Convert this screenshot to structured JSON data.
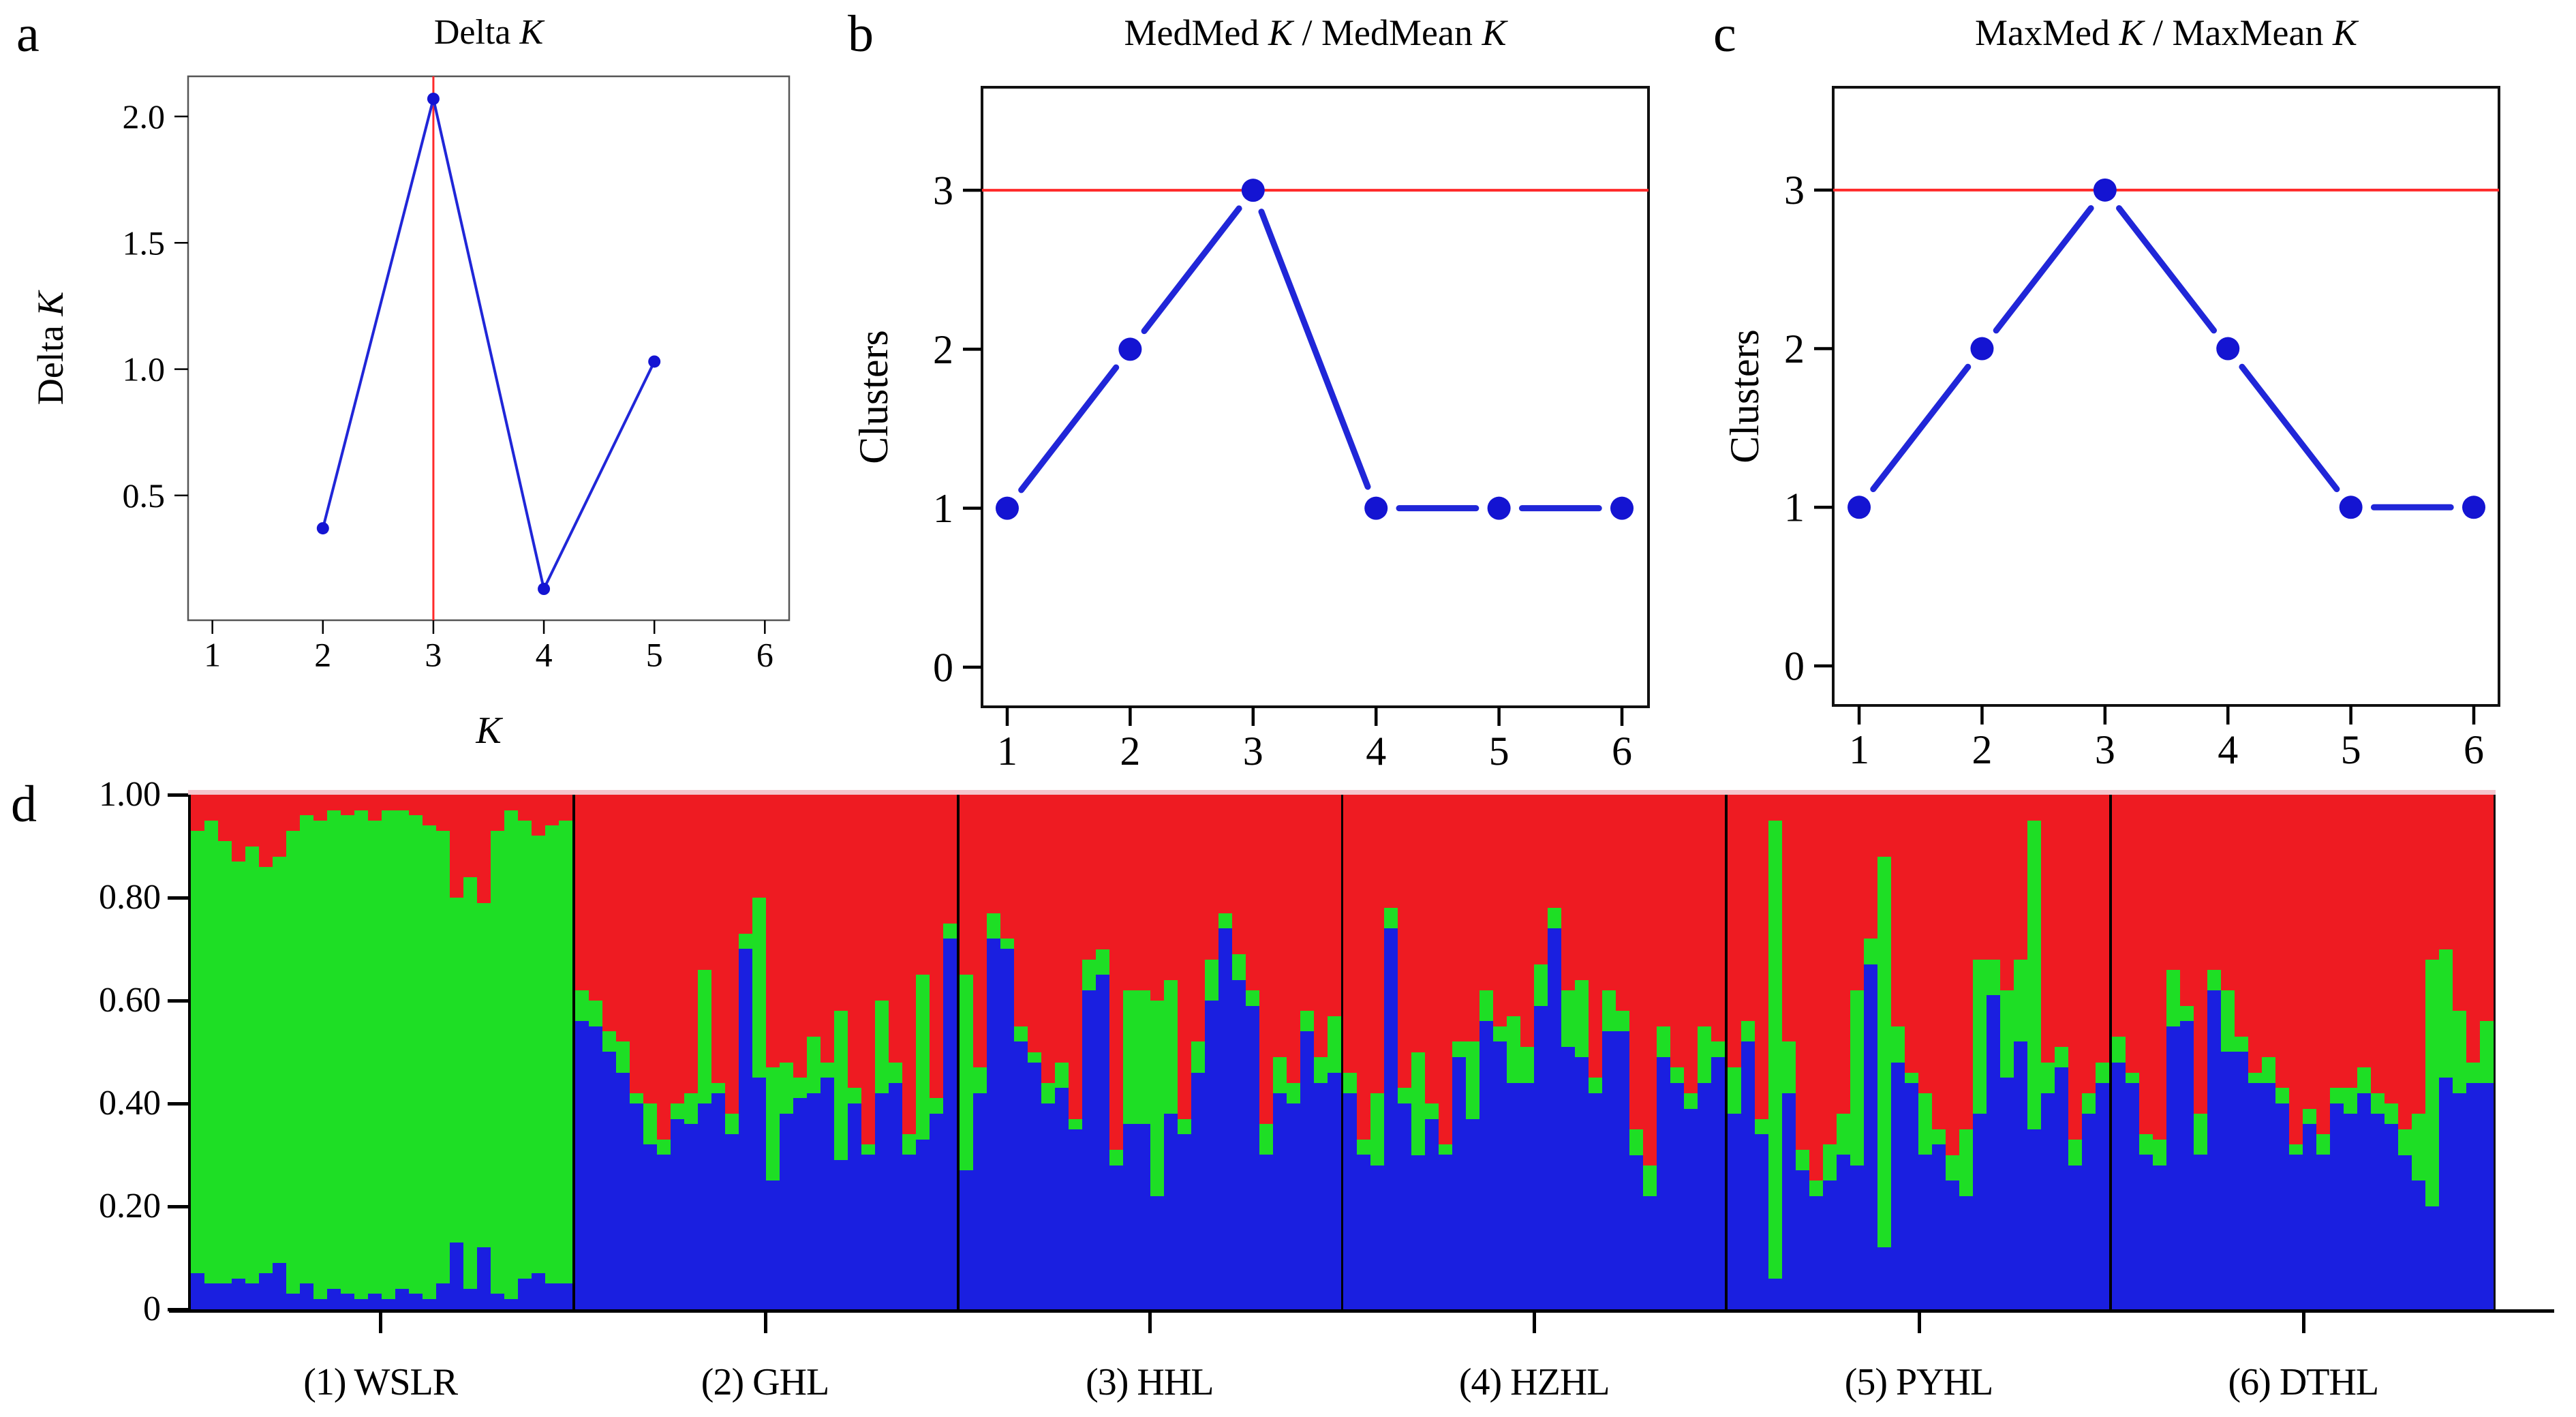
{
  "figure_labels": {
    "a": "a",
    "b": "b",
    "c": "c",
    "d": "d"
  },
  "colors": {
    "bar_red": "#ee1b22",
    "bar_green": "#1ede25",
    "bar_blue": "#1a1fe0",
    "marker_blue": "#1414d2",
    "line_blue": "#2026d8",
    "red_line": "#ff2a2a",
    "axis": "#000000"
  },
  "chart_data": [
    {
      "id": "a",
      "type": "line",
      "title": "Delta K",
      "xlabel": "K",
      "ylabel": "Delta K",
      "x": [
        2,
        3,
        4,
        5
      ],
      "y": [
        0.37,
        2.07,
        0.13,
        1.03
      ],
      "xticks": [
        1,
        2,
        3,
        4,
        5,
        6
      ],
      "ytick_vals": [
        0.5,
        1.0,
        1.5,
        2.0
      ],
      "ytick_labels": [
        "0.5",
        "1.0",
        "1.5",
        "2.0"
      ],
      "xlim": [
        0.78,
        6.22
      ],
      "ylim": [
        0.006,
        2.159
      ],
      "vline": {
        "x": 3
      },
      "grid": false,
      "legend": "none"
    },
    {
      "id": "b",
      "type": "line",
      "title": "MedMed K / MedMean K",
      "xlabel": "K",
      "ylabel": "Clusters",
      "x": [
        1,
        2,
        3,
        4,
        5,
        6
      ],
      "y": [
        1,
        2,
        3,
        1,
        1,
        1
      ],
      "xticks": [
        1,
        2,
        3,
        4,
        5,
        6
      ],
      "ytick_vals": [
        0,
        1,
        2,
        3
      ],
      "ytick_labels": [
        "0",
        "1",
        "2",
        "3"
      ],
      "xlim": [
        0.795,
        6.216
      ],
      "ylim": [
        -0.249,
        3.648
      ],
      "hline": {
        "y": 3
      },
      "grid": false,
      "legend": "none"
    },
    {
      "id": "c",
      "type": "line",
      "title": "MaxMed K / MaxMean K",
      "xlabel": "K",
      "ylabel": "Clusters",
      "x": [
        1,
        2,
        3,
        4,
        5,
        6
      ],
      "y": [
        1,
        2,
        3,
        2,
        1,
        1
      ],
      "xticks": [
        1,
        2,
        3,
        4,
        5,
        6
      ],
      "ytick_vals": [
        0,
        1,
        2,
        3
      ],
      "ytick_labels": [
        "0",
        "1",
        "2",
        "3"
      ],
      "xlim": [
        0.789,
        6.205
      ],
      "ylim": [
        -0.249,
        3.648
      ],
      "hline": {
        "y": 3
      },
      "grid": false,
      "legend": "none"
    },
    {
      "id": "d",
      "type": "bar",
      "subtype": "stacked_admixture",
      "ylim": [
        0,
        1
      ],
      "ytick_vals": [
        1.0,
        0.8,
        0.6,
        0.4,
        0.2,
        0
      ],
      "ytick_labels": [
        "1.00",
        "0.80",
        "0.60",
        "0.40",
        "0.20",
        "0"
      ],
      "segment_order_top_to_bottom": [
        "red",
        "green",
        "blue"
      ],
      "bar_format": "[blue_fraction, green_fraction]; red = 1 - blue - green",
      "populations": [
        {
          "label": "(1) WSLR",
          "bars": [
            [
              0.07,
              0.86
            ],
            [
              0.05,
              0.9
            ],
            [
              0.05,
              0.86
            ],
            [
              0.06,
              0.81
            ],
            [
              0.05,
              0.85
            ],
            [
              0.07,
              0.79
            ],
            [
              0.09,
              0.79
            ],
            [
              0.03,
              0.9
            ],
            [
              0.05,
              0.91
            ],
            [
              0.02,
              0.93
            ],
            [
              0.04,
              0.93
            ],
            [
              0.03,
              0.93
            ],
            [
              0.02,
              0.95
            ],
            [
              0.03,
              0.92
            ],
            [
              0.02,
              0.95
            ],
            [
              0.04,
              0.93
            ],
            [
              0.03,
              0.93
            ],
            [
              0.02,
              0.92
            ],
            [
              0.05,
              0.88
            ],
            [
              0.13,
              0.67
            ],
            [
              0.04,
              0.8
            ],
            [
              0.12,
              0.67
            ],
            [
              0.03,
              0.9
            ],
            [
              0.02,
              0.95
            ],
            [
              0.06,
              0.89
            ],
            [
              0.07,
              0.85
            ],
            [
              0.05,
              0.89
            ],
            [
              0.05,
              0.9
            ]
          ]
        },
        {
          "label": "(2) GHL",
          "bars": [
            [
              0.56,
              0.06
            ],
            [
              0.55,
              0.05
            ],
            [
              0.5,
              0.04
            ],
            [
              0.46,
              0.06
            ],
            [
              0.4,
              0.02
            ],
            [
              0.32,
              0.08
            ],
            [
              0.3,
              0.03
            ],
            [
              0.37,
              0.03
            ],
            [
              0.36,
              0.06
            ],
            [
              0.4,
              0.26
            ],
            [
              0.42,
              0.02
            ],
            [
              0.34,
              0.04
            ],
            [
              0.7,
              0.03
            ],
            [
              0.45,
              0.35
            ],
            [
              0.25,
              0.22
            ],
            [
              0.38,
              0.1
            ],
            [
              0.41,
              0.04
            ],
            [
              0.42,
              0.11
            ],
            [
              0.45,
              0.03
            ],
            [
              0.29,
              0.29
            ],
            [
              0.4,
              0.03
            ],
            [
              0.3,
              0.02
            ],
            [
              0.42,
              0.18
            ],
            [
              0.44,
              0.04
            ],
            [
              0.3,
              0.04
            ],
            [
              0.33,
              0.32
            ],
            [
              0.38,
              0.03
            ],
            [
              0.72,
              0.03
            ]
          ]
        },
        {
          "label": "(3) HHL",
          "bars": [
            [
              0.27,
              0.38
            ],
            [
              0.42,
              0.05
            ],
            [
              0.72,
              0.05
            ],
            [
              0.7,
              0.02
            ],
            [
              0.52,
              0.03
            ],
            [
              0.48,
              0.02
            ],
            [
              0.4,
              0.04
            ],
            [
              0.43,
              0.05
            ],
            [
              0.35,
              0.02
            ],
            [
              0.62,
              0.06
            ],
            [
              0.65,
              0.05
            ],
            [
              0.28,
              0.03
            ],
            [
              0.36,
              0.26
            ],
            [
              0.36,
              0.26
            ],
            [
              0.22,
              0.38
            ],
            [
              0.38,
              0.26
            ],
            [
              0.34,
              0.03
            ],
            [
              0.46,
              0.06
            ],
            [
              0.6,
              0.08
            ],
            [
              0.74,
              0.03
            ],
            [
              0.64,
              0.05
            ],
            [
              0.59,
              0.03
            ],
            [
              0.3,
              0.06
            ],
            [
              0.42,
              0.07
            ],
            [
              0.4,
              0.04
            ],
            [
              0.54,
              0.04
            ],
            [
              0.44,
              0.05
            ],
            [
              0.46,
              0.11
            ]
          ]
        },
        {
          "label": "(4) HZHL",
          "bars": [
            [
              0.42,
              0.04
            ],
            [
              0.3,
              0.03
            ],
            [
              0.28,
              0.14
            ],
            [
              0.74,
              0.04
            ],
            [
              0.4,
              0.03
            ],
            [
              0.3,
              0.2
            ],
            [
              0.37,
              0.03
            ],
            [
              0.3,
              0.02
            ],
            [
              0.49,
              0.03
            ],
            [
              0.37,
              0.15
            ],
            [
              0.56,
              0.06
            ],
            [
              0.52,
              0.03
            ],
            [
              0.44,
              0.13
            ],
            [
              0.44,
              0.07
            ],
            [
              0.59,
              0.08
            ],
            [
              0.74,
              0.04
            ],
            [
              0.51,
              0.11
            ],
            [
              0.49,
              0.15
            ],
            [
              0.42,
              0.03
            ],
            [
              0.54,
              0.08
            ],
            [
              0.54,
              0.04
            ],
            [
              0.3,
              0.05
            ],
            [
              0.22,
              0.06
            ],
            [
              0.49,
              0.06
            ],
            [
              0.44,
              0.03
            ],
            [
              0.39,
              0.03
            ],
            [
              0.44,
              0.11
            ],
            [
              0.49,
              0.03
            ]
          ]
        },
        {
          "label": "(5) PYHL",
          "bars": [
            [
              0.38,
              0.09
            ],
            [
              0.52,
              0.04
            ],
            [
              0.34,
              0.03
            ],
            [
              0.06,
              0.89
            ],
            [
              0.42,
              0.1
            ],
            [
              0.27,
              0.04
            ],
            [
              0.22,
              0.03
            ],
            [
              0.25,
              0.07
            ],
            [
              0.3,
              0.08
            ],
            [
              0.28,
              0.34
            ],
            [
              0.67,
              0.05
            ],
            [
              0.12,
              0.76
            ],
            [
              0.48,
              0.07
            ],
            [
              0.44,
              0.02
            ],
            [
              0.3,
              0.12
            ],
            [
              0.32,
              0.03
            ],
            [
              0.25,
              0.05
            ],
            [
              0.22,
              0.13
            ],
            [
              0.38,
              0.3
            ],
            [
              0.61,
              0.07
            ],
            [
              0.45,
              0.17
            ],
            [
              0.52,
              0.16
            ],
            [
              0.35,
              0.6
            ],
            [
              0.42,
              0.06
            ],
            [
              0.47,
              0.04
            ],
            [
              0.28,
              0.05
            ],
            [
              0.38,
              0.04
            ],
            [
              0.44,
              0.04
            ]
          ]
        },
        {
          "label": "(6) DTHL",
          "bars": [
            [
              0.48,
              0.05
            ],
            [
              0.44,
              0.02
            ],
            [
              0.3,
              0.04
            ],
            [
              0.28,
              0.05
            ],
            [
              0.55,
              0.11
            ],
            [
              0.56,
              0.03
            ],
            [
              0.3,
              0.08
            ],
            [
              0.62,
              0.04
            ],
            [
              0.5,
              0.12
            ],
            [
              0.5,
              0.03
            ],
            [
              0.44,
              0.02
            ],
            [
              0.44,
              0.05
            ],
            [
              0.4,
              0.03
            ],
            [
              0.3,
              0.02
            ],
            [
              0.36,
              0.03
            ],
            [
              0.3,
              0.04
            ],
            [
              0.4,
              0.03
            ],
            [
              0.38,
              0.05
            ],
            [
              0.42,
              0.05
            ],
            [
              0.38,
              0.04
            ],
            [
              0.36,
              0.04
            ],
            [
              0.3,
              0.05
            ],
            [
              0.25,
              0.13
            ],
            [
              0.2,
              0.48
            ],
            [
              0.45,
              0.25
            ],
            [
              0.42,
              0.16
            ],
            [
              0.44,
              0.04
            ],
            [
              0.44,
              0.12
            ]
          ]
        }
      ]
    }
  ]
}
